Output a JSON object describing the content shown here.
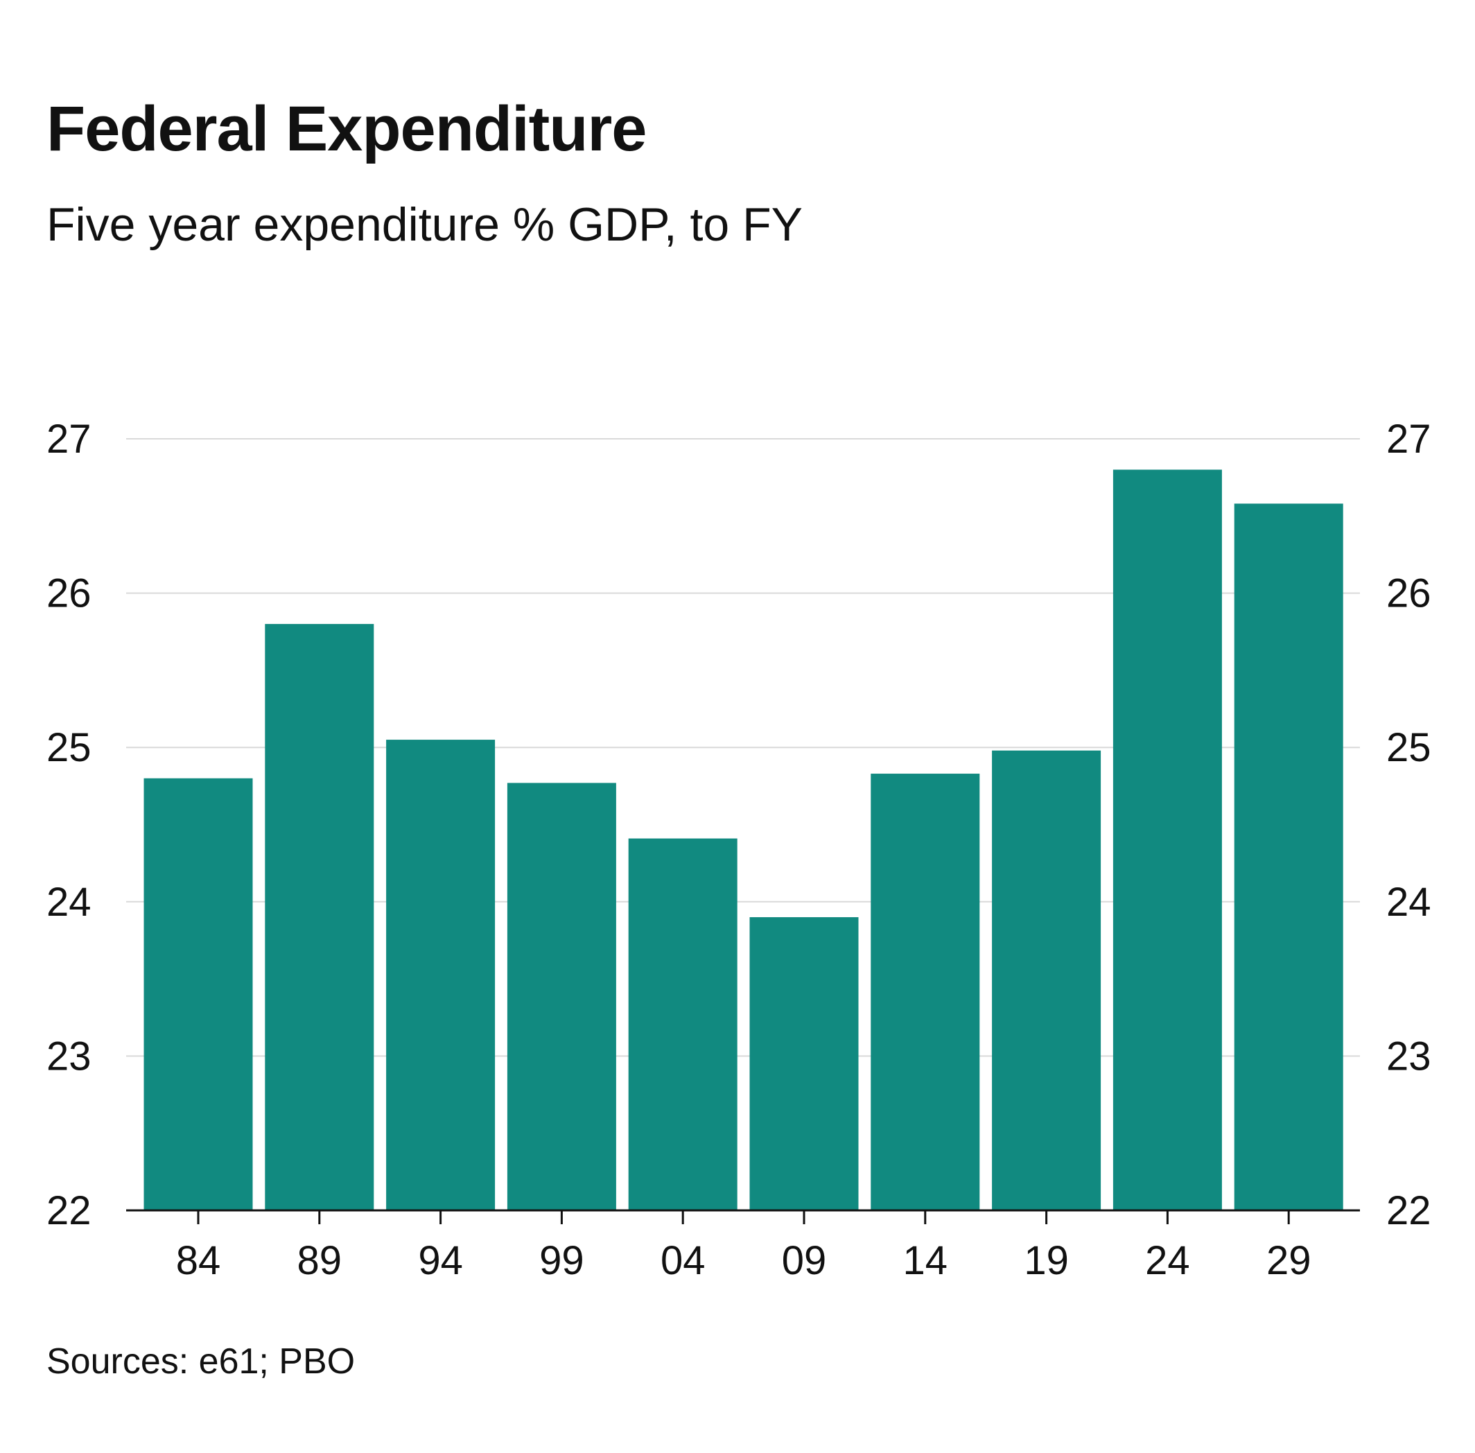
{
  "title": "Federal Expenditure",
  "subtitle": "Five year expenditure % GDP, to FY",
  "source": "Sources: e61; PBO",
  "colors": {
    "bar": "#118a80",
    "grid": "#d9d9d9",
    "axis": "#111111",
    "text": "#111111"
  },
  "chart_data": {
    "type": "bar",
    "categories": [
      "84",
      "89",
      "94",
      "99",
      "04",
      "09",
      "14",
      "19",
      "24",
      "29"
    ],
    "series": [
      {
        "values": [
          24.8,
          25.8,
          25.05,
          24.77,
          24.41,
          23.9,
          24.83,
          24.98,
          26.8,
          26.58
        ]
      }
    ],
    "xlabel": "",
    "ylabel": "",
    "ylim": [
      22,
      27
    ],
    "yticks": [
      "22",
      "23",
      "24",
      "25",
      "26",
      "27"
    ],
    "y_axis_both_sides": true,
    "grid": true,
    "legend": "none"
  }
}
